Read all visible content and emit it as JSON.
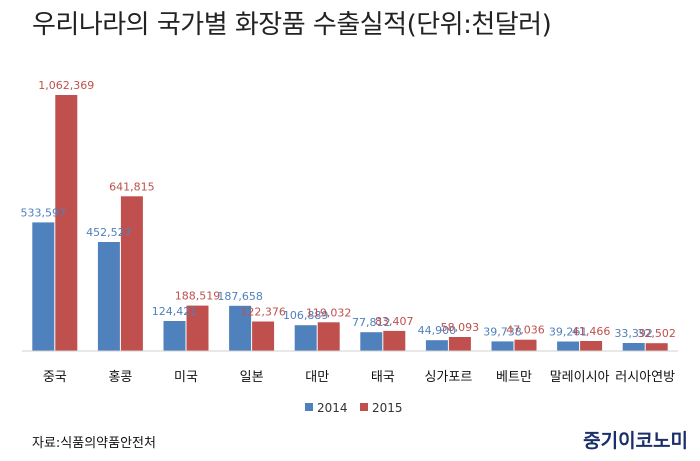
{
  "title": "우리나라의 국가별 화장품 수출실적(단위:천달러)",
  "source": "자료:식품의약품안전처",
  "brand": "중기이코노미",
  "colors": {
    "2014": "#4f81bd",
    "2015": "#c0504d",
    "label2014": "#4f81bd",
    "label2015": "#c0504d"
  },
  "chart_data": {
    "type": "bar",
    "title": "우리나라의 국가별 화장품 수출실적(단위:천달러)",
    "categories": [
      "중국",
      "홍콩",
      "미국",
      "일본",
      "대만",
      "태국",
      "싱가포르",
      "베트만",
      "말레이시아",
      "러시아연방"
    ],
    "series": [
      {
        "name": "2014",
        "values": [
          533597,
          452527,
          124421,
          187658,
          106889,
          77812,
          44900,
          39738,
          39261,
          33392
        ],
        "labels": [
          "533,597",
          "452,527",
          "124,421",
          "187,658",
          "106,889",
          "77,812",
          "44,900",
          "39,738",
          "39,261",
          "33,392"
        ]
      },
      {
        "name": "2015",
        "values": [
          1062369,
          641815,
          188519,
          122376,
          119032,
          83407,
          58093,
          47036,
          41466,
          32502
        ],
        "labels": [
          "1,062,369",
          "641,815",
          "188,519",
          "122,376",
          "119,032",
          "83,407",
          "58,093",
          "47,036",
          "41,466",
          "32,502"
        ]
      }
    ],
    "ylim": [
      0,
      1062369
    ],
    "grid": false,
    "legend": "bottom"
  }
}
